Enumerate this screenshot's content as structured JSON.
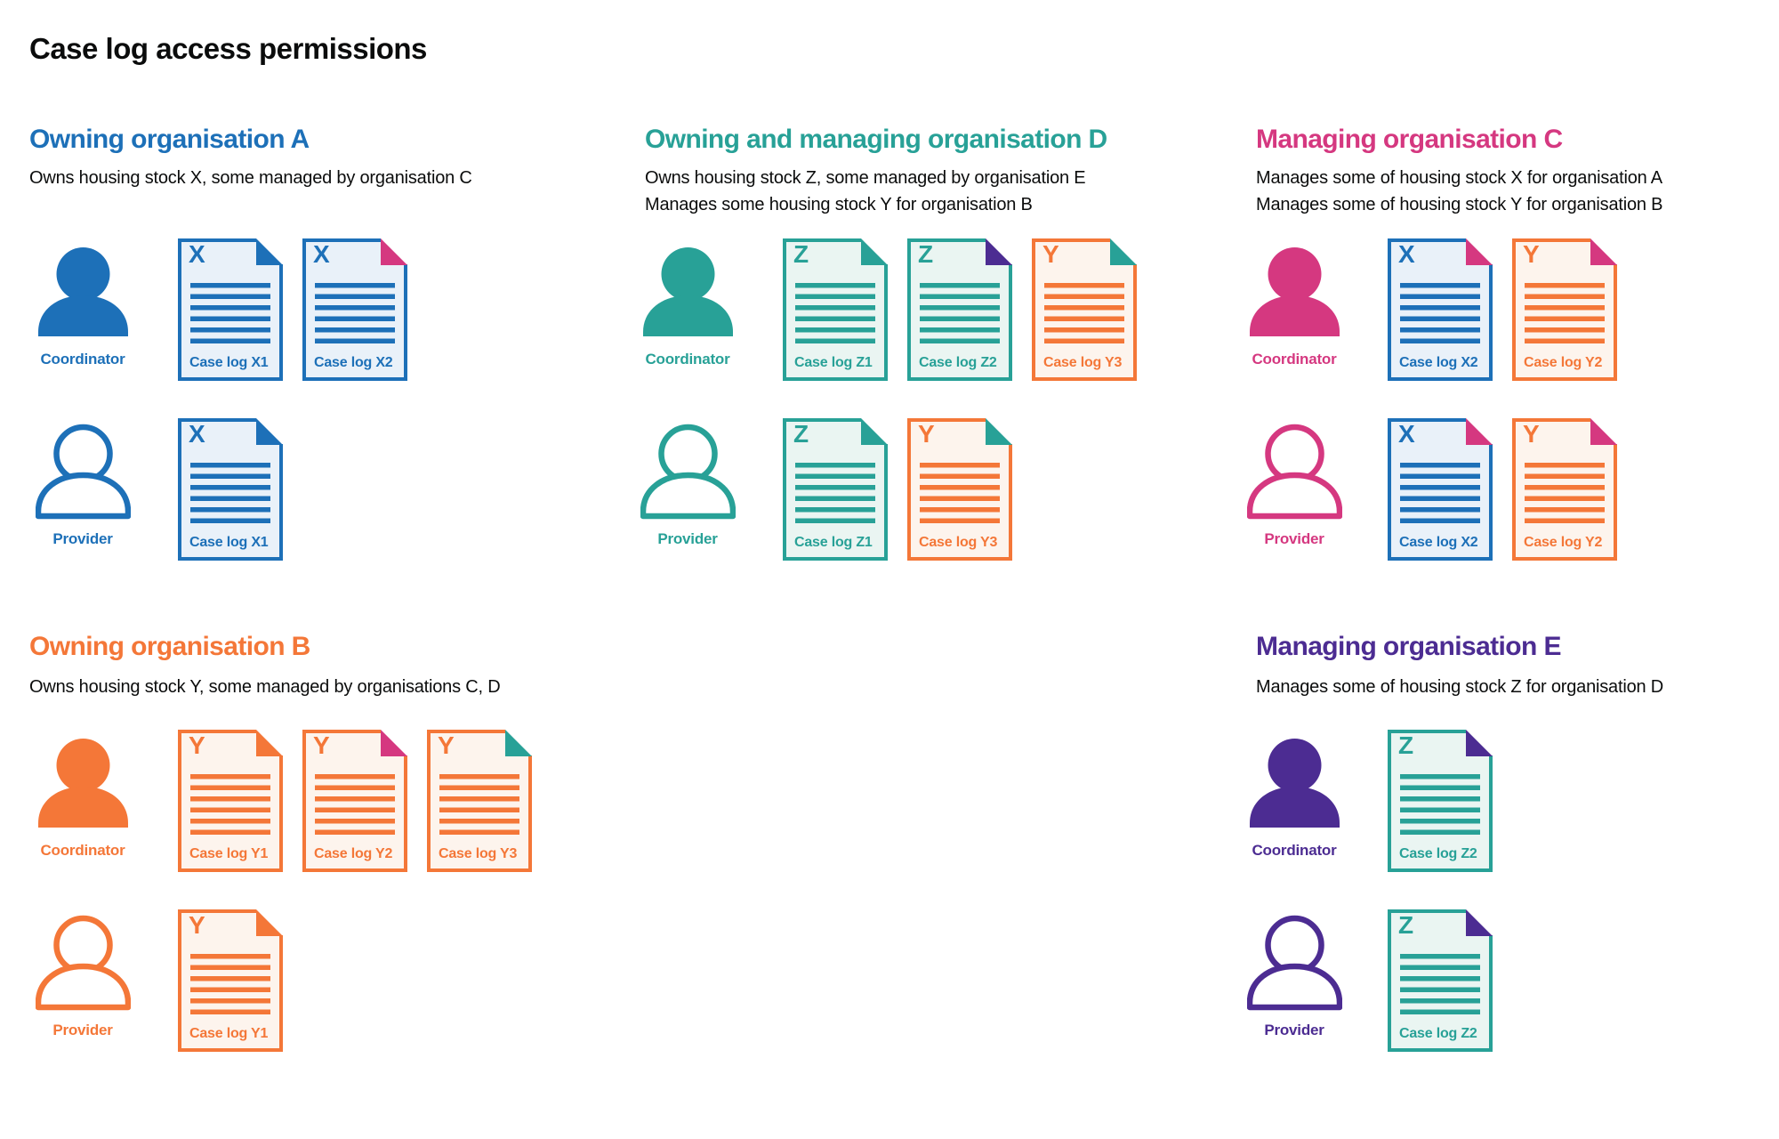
{
  "page_title": "Case log access permissions",
  "palette": {
    "text": "#0b0c0c",
    "blue": "#1d70b8",
    "teal": "#28a197",
    "orange": "#f47738",
    "pink": "#d53880",
    "purple": "#4c2c92",
    "doc_tint_blue": "#e9f1f9",
    "doc_tint_teal": "#eaf5f2",
    "doc_tint_orange": "#fdf4ed",
    "background": "#ffffff"
  },
  "roles": {
    "coordinator_label": "Coordinator",
    "provider_label": "Provider"
  },
  "organisations": [
    {
      "id": "owning-organisation-a",
      "color": "blue",
      "title": "Owning organisation A",
      "description": [
        "Owns housing stock X, some managed by organisation C"
      ],
      "layout": {
        "col": 0,
        "band": 0
      },
      "coordinator_docs": [
        {
          "label": "Case log X1",
          "letter": "X",
          "color": "blue",
          "fold": "blue"
        },
        {
          "label": "Case log X2",
          "letter": "X",
          "color": "blue",
          "fold": "pink"
        }
      ],
      "provider_docs": [
        {
          "label": "Case log X1",
          "letter": "X",
          "color": "blue",
          "fold": "blue"
        }
      ]
    },
    {
      "id": "owning-and-managing-organisation-d",
      "color": "teal",
      "title": "Owning and managing organisation D",
      "description": [
        "Owns housing stock Z, some managed by organisation E",
        "Manages some housing stock Y for organisation B"
      ],
      "layout": {
        "col": 1,
        "band": 0
      },
      "coordinator_docs": [
        {
          "label": "Case log Z1",
          "letter": "Z",
          "color": "teal",
          "fold": "teal"
        },
        {
          "label": "Case log Z2",
          "letter": "Z",
          "color": "teal",
          "fold": "purple"
        },
        {
          "label": "Case log Y3",
          "letter": "Y",
          "color": "orange",
          "fold": "teal"
        }
      ],
      "provider_docs": [
        {
          "label": "Case log Z1",
          "letter": "Z",
          "color": "teal",
          "fold": "teal"
        },
        {
          "label": "Case log Y3",
          "letter": "Y",
          "color": "orange",
          "fold": "teal"
        }
      ]
    },
    {
      "id": "managing-organisation-c",
      "color": "pink",
      "title": "Managing organisation C",
      "description": [
        "Manages some of housing stock X for organisation A",
        "Manages some of housing stock Y for organisation B"
      ],
      "layout": {
        "col": 2,
        "band": 0
      },
      "coordinator_docs": [
        {
          "label": "Case log X2",
          "letter": "X",
          "color": "blue",
          "fold": "pink"
        },
        {
          "label": "Case log Y2",
          "letter": "Y",
          "color": "orange",
          "fold": "pink"
        }
      ],
      "provider_docs": [
        {
          "label": "Case log X2",
          "letter": "X",
          "color": "blue",
          "fold": "pink"
        },
        {
          "label": "Case log Y2",
          "letter": "Y",
          "color": "orange",
          "fold": "pink"
        }
      ]
    },
    {
      "id": "owning-organisation-b",
      "color": "orange",
      "title": "Owning organisation B",
      "description": [
        "Owns housing stock Y, some managed by organisations C, D"
      ],
      "layout": {
        "col": 0,
        "band": 1
      },
      "coordinator_docs": [
        {
          "label": "Case log Y1",
          "letter": "Y",
          "color": "orange",
          "fold": "orange"
        },
        {
          "label": "Case log Y2",
          "letter": "Y",
          "color": "orange",
          "fold": "pink"
        },
        {
          "label": "Case log Y3",
          "letter": "Y",
          "color": "orange",
          "fold": "teal"
        }
      ],
      "provider_docs": [
        {
          "label": "Case log Y1",
          "letter": "Y",
          "color": "orange",
          "fold": "orange"
        }
      ]
    },
    {
      "id": "managing-organisation-e",
      "color": "purple",
      "title": "Managing organisation E",
      "description": [
        "Manages some of housing stock Z for organisation D"
      ],
      "layout": {
        "col": 2,
        "band": 1
      },
      "coordinator_docs": [
        {
          "label": "Case log Z2",
          "letter": "Z",
          "color": "teal",
          "fold": "purple"
        }
      ],
      "provider_docs": [
        {
          "label": "Case log Z2",
          "letter": "Z",
          "color": "teal",
          "fold": "purple"
        }
      ]
    }
  ]
}
